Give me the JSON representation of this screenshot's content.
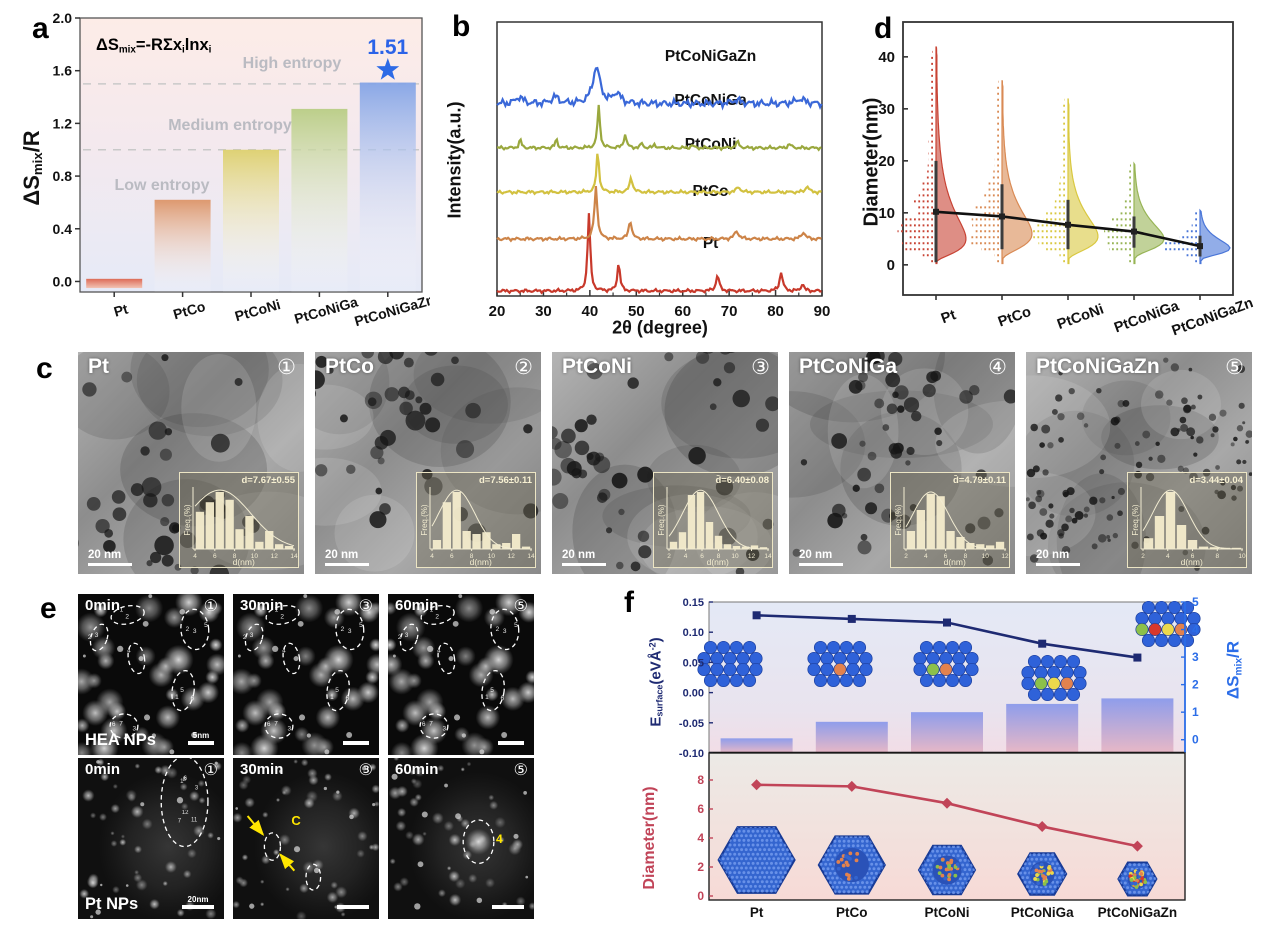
{
  "panel_letters": {
    "a": "a",
    "b": "b",
    "c": "c",
    "d": "d",
    "e": "e",
    "f": "f"
  },
  "panel_a_text": {
    "formula": {
      "t1": "ΔS",
      "sub1": "mix",
      "t2": "=-RΣx",
      "sub2": "i",
      "t3": "lnx",
      "sub3": "i"
    },
    "ylabel": {
      "t1": "ΔS",
      "sub1": "mix",
      "t2": "/R"
    }
  },
  "panel_b_text": {
    "ylabel": "Intensity(a.u.)",
    "xlabel": "2θ (degree)"
  },
  "panel_d_text": {
    "ylabel": "Diameter(nm)"
  },
  "panel_f_text": {
    "ylabel_left": {
      "t1": "E",
      "sub1": "surface",
      "t2": "(eVÅ",
      "sup1": "-2",
      "t3": ")"
    },
    "ylabel_right": {
      "t1": "ΔS",
      "sub1": "mix",
      "t2": "/R"
    },
    "ylabel_bottom": "Diameter(nm)"
  },
  "chart_data": [
    {
      "id": "a",
      "type": "bar",
      "categories": [
        "Pt",
        "PtCo",
        "PtCoNi",
        "PtCoNiGa",
        "PtCoNiGaZn"
      ],
      "values": [
        0.02,
        0.62,
        1.0,
        1.31,
        1.51
      ],
      "bar_colors": [
        "#dd6b57",
        "#dc9468",
        "#ddd06e",
        "#b9cd85",
        "#84a4e6"
      ],
      "yticks": [
        0.0,
        0.4,
        0.8,
        1.2,
        1.6,
        2.0
      ],
      "ylim": [
        -0.08,
        2.0
      ],
      "ref_lines": [
        1.0,
        1.5
      ],
      "regions": [
        {
          "label": "Low entropy",
          "x": 144,
          "y": 180
        },
        {
          "label": "Medium entropy",
          "x": 212,
          "y": 120
        },
        {
          "label": "High entropy",
          "x": 274,
          "y": 58
        }
      ],
      "annotation": {
        "text": "1.51",
        "value": 1.51,
        "color": "#2b63e8",
        "marker": "star"
      }
    },
    {
      "id": "b",
      "type": "xrd-lines",
      "xlim": [
        20,
        90
      ],
      "xticks": [
        20,
        30,
        40,
        50,
        60,
        70,
        80,
        90
      ],
      "series": [
        {
          "name": "Pt",
          "color": "#c8392b",
          "offset": 0,
          "noise": 1,
          "peaks": [
            [
              39.8,
              1.5,
              0.33
            ],
            [
              46.2,
              0.55,
              0.33
            ],
            [
              67.5,
              0.3,
              0.4
            ],
            [
              81.2,
              0.36,
              0.4
            ],
            [
              85.8,
              0.14,
              0.35
            ]
          ]
        },
        {
          "name": "PtCo",
          "color": "#cd8448",
          "offset": 1.0,
          "noise": 1,
          "peaks": [
            [
              41.3,
              1.0,
              0.38
            ],
            [
              48.7,
              0.36,
              0.38
            ],
            [
              71.6,
              0.15,
              0.55
            ],
            [
              86.0,
              0.13,
              0.5
            ]
          ]
        },
        {
          "name": "PtCoNi",
          "color": "#d2c140",
          "offset": 1.9,
          "noise": 1,
          "peaks": [
            [
              41.7,
              0.78,
              0.33
            ],
            [
              48.9,
              0.28,
              0.38
            ],
            [
              72.0,
              0.1,
              0.5
            ],
            [
              86.8,
              0.12,
              0.4
            ]
          ]
        },
        {
          "name": "PtCoNiGa",
          "color": "#9aa83e",
          "offset": 2.75,
          "noise": 1,
          "peaks": [
            [
              25.0,
              0.16,
              0.3
            ],
            [
              32.8,
              0.17,
              0.3
            ],
            [
              41.9,
              0.8,
              0.33
            ],
            [
              47.6,
              0.26,
              0.35
            ],
            [
              51.2,
              0.09,
              0.3
            ],
            [
              54.0,
              0.07,
              0.3
            ],
            [
              62.0,
              0.05,
              0.35
            ],
            [
              71.8,
              0.11,
              0.45
            ],
            [
              83.0,
              0.07,
              0.45
            ]
          ]
        },
        {
          "name": "PtCoNiGaZn",
          "color": "#3a68d8",
          "offset": 3.6,
          "noise": 2.3,
          "peaks": [
            [
              24.8,
              0.13,
              0.9
            ],
            [
              32.5,
              0.13,
              0.9
            ],
            [
              41.4,
              0.7,
              0.95
            ],
            [
              45.8,
              0.2,
              0.9
            ],
            [
              71.5,
              0.07,
              1.2
            ],
            [
              85.3,
              0.09,
              1.2
            ]
          ]
        }
      ]
    },
    {
      "id": "d",
      "type": "violin",
      "categories": [
        "Pt",
        "PtCo",
        "PtCoNi",
        "PtCoNiGa",
        "PtCoNiGaZn"
      ],
      "colors": [
        "#c84334",
        "#d98a54",
        "#d9c840",
        "#97b455",
        "#4a76d8"
      ],
      "yticks": [
        0,
        10,
        20,
        30,
        40
      ],
      "stats": [
        {
          "mean": 10.2,
          "err_low": 0.5,
          "err_high": 20.0,
          "mode": 5.0,
          "sigma": 0.75,
          "max": 42.0
        },
        {
          "mean": 9.3,
          "err_low": 3.0,
          "err_high": 15.5,
          "mode": 6.0,
          "sigma": 0.6,
          "max": 35.5
        },
        {
          "mean": 7.7,
          "err_low": 3.0,
          "err_high": 12.5,
          "mode": 5.5,
          "sigma": 0.58,
          "max": 32.0
        },
        {
          "mean": 6.4,
          "err_low": 3.3,
          "err_high": 9.3,
          "mode": 5.0,
          "sigma": 0.5,
          "max": 19.5
        },
        {
          "mean": 3.6,
          "err_low": 1.6,
          "err_high": 5.6,
          "mode": 3.2,
          "sigma": 0.45,
          "max": 10.5
        }
      ]
    },
    {
      "id": "f_top",
      "type": "bar+line",
      "categories": [
        "Pt",
        "PtCo",
        "PtCoNi",
        "PtCoNiGa",
        "PtCoNiGaZn"
      ],
      "line": {
        "name": "Esurface",
        "color": "#1e2a72",
        "values": [
          0.128,
          0.122,
          0.116,
          0.081,
          0.058
        ]
      },
      "bars": {
        "name": "ΔSmix/R",
        "values": [
          0.05,
          0.65,
          1.0,
          1.3,
          1.5
        ],
        "color_top": "#8f9deb",
        "color_bottom": "#e8b8c6"
      },
      "ylim_left": [
        -0.1,
        0.15
      ],
      "yticks_left": [
        0.15,
        0.1,
        0.05,
        0.0,
        -0.05,
        -0.1
      ],
      "yticks_right": [
        0,
        1,
        2,
        3,
        4,
        5
      ],
      "axis_color_left": "#1e2a72",
      "axis_color_right": "#2b6de8",
      "atom_colors": {
        "base": "#2f62d9",
        "Co": "#e2824e",
        "Ni": "#8cc04a",
        "Ga": "#ecd94c",
        "Zn": "#d8382c"
      },
      "clusters": [
        [],
        [
          "Co"
        ],
        [
          "Ni",
          "Co"
        ],
        [
          "Ni",
          "Ga",
          "Co"
        ],
        [
          "Ni",
          "Zn",
          "Ga",
          "Co"
        ]
      ]
    },
    {
      "id": "f_bottom",
      "type": "line",
      "categories": [
        "Pt",
        "PtCo",
        "PtCoNi",
        "PtCoNiGa",
        "PtCoNiGaZn"
      ],
      "values": [
        7.67,
        7.56,
        6.4,
        4.79,
        3.44
      ],
      "color": "#c14458",
      "yticks": [
        0,
        2,
        4,
        6,
        8
      ],
      "particle_radii": [
        38,
        33,
        28,
        24,
        19
      ]
    }
  ],
  "panel_c": {
    "tiles": [
      {
        "name": "Pt",
        "index": "①",
        "scale": "20 nm",
        "inset": {
          "annotation": "d=7.67±0.55",
          "ylabel": "Freq.(%)",
          "xlabel": "d(nm)",
          "xticks": [
            4,
            6,
            8,
            10,
            12,
            14
          ],
          "bars": [
            62,
            78,
            95,
            82,
            33,
            55,
            12,
            30,
            8,
            5
          ]
        }
      },
      {
        "name": "PtCo",
        "index": "②",
        "scale": "20 nm",
        "inset": {
          "annotation": "d=7.56±0.11",
          "ylabel": "Freq.(%)",
          "xlabel": "d(nm)",
          "xticks": [
            4,
            6,
            8,
            10,
            12,
            14
          ],
          "bars": [
            15,
            78,
            95,
            30,
            25,
            28,
            8,
            10,
            25,
            4
          ]
        }
      },
      {
        "name": "PtCoNi",
        "index": "③",
        "scale": "20 nm",
        "inset": {
          "annotation": "d̄=6.40±0.08",
          "ylabel": "Freq.(%)",
          "xlabel": "d(nm)",
          "xticks": [
            2,
            4,
            6,
            8,
            10,
            12,
            14
          ],
          "bars": [
            12,
            28,
            90,
            95,
            45,
            22,
            8,
            5,
            4,
            6,
            3
          ]
        }
      },
      {
        "name": "PtCoNiGa",
        "index": "④",
        "scale": "20 nm",
        "inset": {
          "annotation": "d̄=4.79±0.11",
          "ylabel": "Freq.(%)",
          "xlabel": "d(nm)",
          "xticks": [
            2,
            4,
            6,
            8,
            10,
            12
          ],
          "bars": [
            30,
            65,
            92,
            88,
            30,
            20,
            10,
            8,
            6,
            12
          ]
        }
      },
      {
        "name": "PtCoNiGaZn",
        "index": "⑤",
        "scale": "20 nm",
        "inset": {
          "annotation": "d=3.44±0.04",
          "ylabel": "Freq.(%)",
          "xlabel": "d(nm)",
          "xticks": [
            2,
            4,
            6,
            8,
            10
          ],
          "bars": [
            18,
            55,
            95,
            40,
            15,
            4,
            3,
            2,
            2
          ]
        }
      }
    ]
  },
  "panel_e": {
    "particle_ids": [
      "1",
      "2",
      "3",
      "4",
      "5",
      "6",
      "7",
      "8",
      "11",
      "12"
    ],
    "rows": [
      {
        "name": "HEA NPs",
        "scale": "5nm",
        "tiles": [
          {
            "time": "0min",
            "index": "①"
          },
          {
            "time": "30min",
            "index": "③"
          },
          {
            "time": "60min",
            "index": "⑤"
          }
        ]
      },
      {
        "name": "Pt NPs",
        "scale": "20nm",
        "tiles": [
          {
            "time": "0min",
            "index": "①"
          },
          {
            "time": "30min",
            "index": "③",
            "marker": "C"
          },
          {
            "time": "60min",
            "index": "⑤",
            "marker": "4"
          }
        ]
      }
    ]
  }
}
